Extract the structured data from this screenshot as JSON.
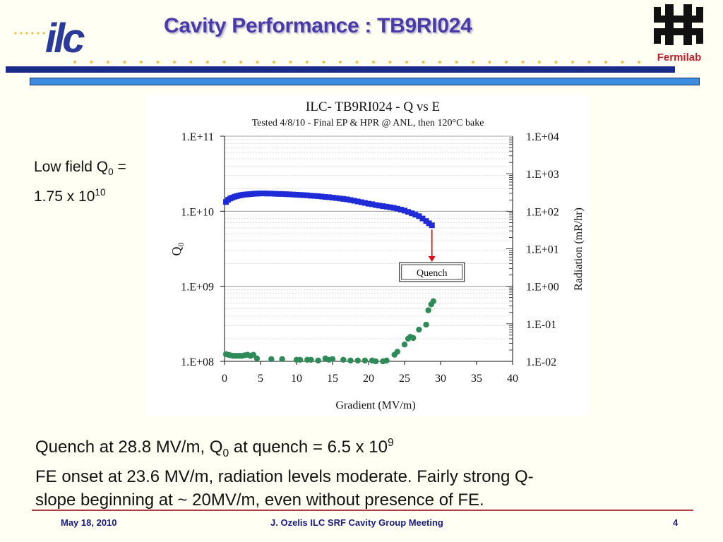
{
  "slide": {
    "title": "Cavity Performance : TB9RI024",
    "side_note": {
      "line1_prefix": "Low field Q",
      "line1_sub": "0",
      "line1_suffix": " =",
      "line2_prefix": "1.75 x 10",
      "line2_sup": "10"
    },
    "body": {
      "line1_a": "Quench at 28.8 MV/m, Q",
      "line1_sub": "0",
      "line1_b": " at quench = 6.5 x 10",
      "line1_sup": "9",
      "line2": "FE onset at 23.6 MV/m, radiation levels moderate. Fairly strong Q-",
      "line3": "slope beginning at ~ 20MV/m, even without presence of FE."
    },
    "footer": {
      "date": "May 18,  2010",
      "meeting": "J. Ozelis  ILC SRF Cavity Group Meeting",
      "page": "4"
    },
    "logos": {
      "left": "ilc",
      "right": "Fermilab"
    }
  },
  "colors": {
    "title": "#4a3aa8",
    "q0_series": "#1f2bd6",
    "radiation_series": "#2e8b57",
    "quench_arrow": "#e01010",
    "header_bar_dark": "#1a2a8a",
    "header_bar_light": "#3c8ce0"
  },
  "chart_data": {
    "type": "scatter",
    "title": "ILC- TB9RI024 - Q vs E",
    "subtitle": "Tested 4/8/10 - Final EP & HPR @ ANL,  then 120°C bake",
    "xlabel": "Gradient (MV/m)",
    "ylabel": "Q0",
    "ylabel_right": "Radiation (mR/hr)",
    "xlim": [
      0,
      40
    ],
    "ylim": [
      100000000.0,
      100000000000.0
    ],
    "ylim_right": [
      0.01,
      10000
    ],
    "y_scale": "log",
    "y_right_scale": "log",
    "x_ticks": [
      "0",
      "5",
      "10",
      "15",
      "20",
      "25",
      "30",
      "35",
      "40"
    ],
    "y_ticks": [
      "1.E+08",
      "1.E+09",
      "1.E+10",
      "1.E+11"
    ],
    "y_right_ticks": [
      "1.E-02",
      "1.E-01",
      "1.E+00",
      "1.E+01",
      "1.E+02",
      "1.E+03",
      "1.E+04"
    ],
    "annotation": {
      "text": "Quench",
      "x": 28.8
    },
    "grid": true,
    "series": [
      {
        "axis": "left",
        "x": [
          0.2,
          0.5,
          0.8,
          1.1,
          1.4,
          1.7,
          2.0,
          2.3,
          2.6,
          2.9,
          3.2,
          3.5,
          3.8,
          4.1,
          4.4,
          4.7,
          5.0,
          5.3,
          5.6,
          5.9,
          6.5,
          7.0,
          7.5,
          8.0,
          8.5,
          9.0,
          9.5,
          10.0,
          10.5,
          11.0,
          11.5,
          12.0,
          12.5,
          13.0,
          13.5,
          14.0,
          14.5,
          15.0,
          15.5,
          16.0,
          16.5,
          17.0,
          17.5,
          18.0,
          18.5,
          19.0,
          19.5,
          20.0,
          20.5,
          21.0,
          21.5,
          22.0,
          22.5,
          23.0,
          23.5,
          24.0,
          24.5,
          25.0,
          25.5,
          26.0,
          26.5,
          27.0,
          27.5,
          28.0,
          28.4,
          28.8
        ],
        "y": [
          13300000000.0,
          14200000000.0,
          14800000000.0,
          15200000000.0,
          15600000000.0,
          15900000000.0,
          16200000000.0,
          16400000000.0,
          16600000000.0,
          16700000000.0,
          16800000000.0,
          16900000000.0,
          17000000000.0,
          17100000000.0,
          17200000000.0,
          17200000000.0,
          17300000000.0,
          17300000000.0,
          17300000000.0,
          17200000000.0,
          17200000000.0,
          17100000000.0,
          17000000000.0,
          17000000000.0,
          16900000000.0,
          16800000000.0,
          16700000000.0,
          16600000000.0,
          16500000000.0,
          16400000000.0,
          16300000000.0,
          16100000000.0,
          16000000000.0,
          15900000000.0,
          15700000000.0,
          15500000000.0,
          15400000000.0,
          15200000000.0,
          15000000000.0,
          14800000000.0,
          14600000000.0,
          14400000000.0,
          14100000000.0,
          13800000000.0,
          13500000000.0,
          13200000000.0,
          12900000000.0,
          12600000000.0,
          12400000000.0,
          12100000000.0,
          11900000000.0,
          11700000000.0,
          11500000000.0,
          11300000000.0,
          11100000000.0,
          10800000000.0,
          10500000000.0,
          10200000000.0,
          9800000000.0,
          9400000000.0,
          9000000000.0,
          8600000000.0,
          8000000000.0,
          7400000000.0,
          6900000000.0,
          6500000000.0
        ]
      },
      {
        "axis": "right",
        "x": [
          0.2,
          0.5,
          0.8,
          1.2,
          1.6,
          2.0,
          2.4,
          2.8,
          3.2,
          3.6,
          4.0,
          4.5,
          6.5,
          8.0,
          10.0,
          10.5,
          11.5,
          12.0,
          13.0,
          14.0,
          14.5,
          15.0,
          16.5,
          17.5,
          18.5,
          19.5,
          20.5,
          21.0,
          22.0,
          22.5,
          23.6,
          24.0,
          25.0,
          25.5,
          25.8,
          26.2,
          27.0,
          28.0,
          28.3,
          28.7,
          29.0
        ],
        "y": [
          0.0155,
          0.015,
          0.0145,
          0.014,
          0.014,
          0.014,
          0.014,
          0.0145,
          0.015,
          0.014,
          0.015,
          0.012,
          0.0115,
          0.0115,
          0.011,
          0.011,
          0.011,
          0.011,
          0.0105,
          0.012,
          0.011,
          0.0115,
          0.011,
          0.0105,
          0.0105,
          0.0105,
          0.0105,
          0.01,
          0.01,
          0.0105,
          0.015,
          0.018,
          0.028,
          0.04,
          0.045,
          0.042,
          0.07,
          0.095,
          0.23,
          0.33,
          0.4
        ]
      }
    ]
  }
}
